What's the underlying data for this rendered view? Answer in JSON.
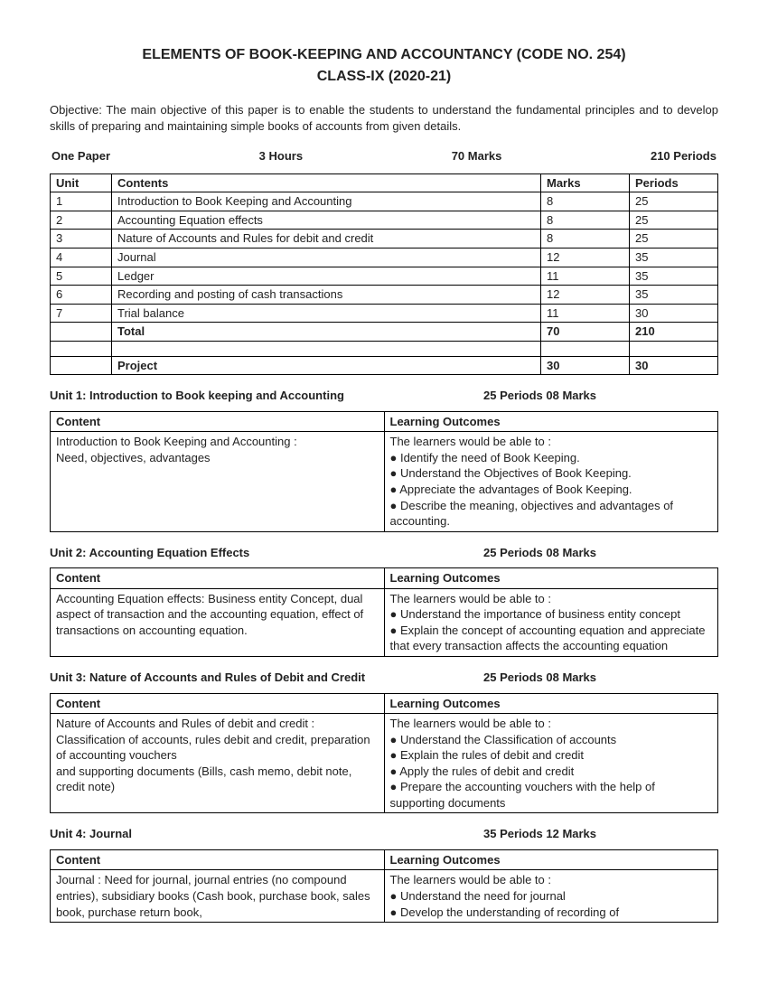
{
  "header": {
    "title": "ELEMENTS OF BOOK-KEEPING AND ACCOUNTANCY (CODE NO. 254)",
    "subtitle": "CLASS-IX (2020-21)"
  },
  "objective": "Objective: The main objective of this paper is to enable the students to understand the fundamental principles and to develop skills of preparing and maintaining simple books of accounts from given details.",
  "meta": {
    "paper": "One Paper",
    "duration": "3 Hours",
    "marks": "70 Marks",
    "periods": "210 Periods"
  },
  "mainTable": {
    "headers": {
      "unit": "Unit",
      "contents": "Contents",
      "marks": "Marks",
      "periods": "Periods"
    },
    "rows": [
      {
        "unit": "1",
        "contents": "Introduction to Book Keeping and Accounting",
        "marks": "8",
        "periods": "25"
      },
      {
        "unit": "2",
        "contents": "Accounting Equation effects",
        "marks": "8",
        "periods": "25"
      },
      {
        "unit": "3",
        "contents": "Nature of Accounts and Rules for debit and credit",
        "marks": "8",
        "periods": "25"
      },
      {
        "unit": "4",
        "contents": "Journal",
        "marks": "12",
        "periods": "35"
      },
      {
        "unit": "5",
        "contents": "Ledger",
        "marks": "11",
        "periods": "35"
      },
      {
        "unit": "6",
        "contents": "Recording and posting of cash transactions",
        "marks": "12",
        "periods": "35"
      },
      {
        "unit": "7",
        "contents": "Trial balance",
        "marks": "11",
        "periods": "30"
      }
    ],
    "total": {
      "unit": "",
      "contents": "Total",
      "marks": "70",
      "periods": "210"
    },
    "project": {
      "unit": "",
      "contents": "Project",
      "marks": "30",
      "periods": "30"
    }
  },
  "unitHeaders": {
    "contentLabel": "Content",
    "outcomesLabel": "Learning Outcomes"
  },
  "units": [
    {
      "title": "Unit 1: Introduction to Book keeping and Accounting",
      "meta": "25 Periods 08 Marks",
      "content": "Introduction to Book Keeping and Accounting :\nNeed, objectives, advantages",
      "outcomes": "The learners would be able to :\n● Identify the need of Book Keeping.\n● Understand the Objectives of Book Keeping.\n● Appreciate the advantages of Book Keeping.\n● Describe the meaning, objectives and advantages of accounting."
    },
    {
      "title": "Unit 2: Accounting Equation Effects",
      "meta": "25 Periods 08 Marks",
      "content": "Accounting Equation effects: Business entity Concept, dual aspect of transaction and the accounting equation, effect of transactions on accounting equation.",
      "outcomes": "The learners would be able to :\n● Understand the importance of business entity concept\n● Explain the concept of accounting equation and appreciate that every transaction affects the accounting equation"
    },
    {
      "title": "Unit 3: Nature of Accounts and Rules of Debit and Credit",
      "meta": "25 Periods 08 Marks",
      "content": "Nature of Accounts and Rules of debit and credit : Classification of accounts, rules debit and credit, preparation of accounting vouchers\nand supporting documents (Bills, cash memo, debit note, credit note)",
      "outcomes": "The learners would be able to :\n● Understand the Classification of accounts\n● Explain the rules of debit and credit\n● Apply the rules of debit and credit\n● Prepare the accounting vouchers with the help of supporting documents"
    },
    {
      "title": "Unit 4: Journal",
      "meta": "35 Periods 12 Marks",
      "content": "Journal : Need for journal, journal entries (no compound entries), subsidiary books (Cash book, purchase book, sales book, purchase return book,",
      "outcomes": "The learners would be able to :\n● Understand the need for journal\n● Develop the understanding of recording of"
    }
  ]
}
